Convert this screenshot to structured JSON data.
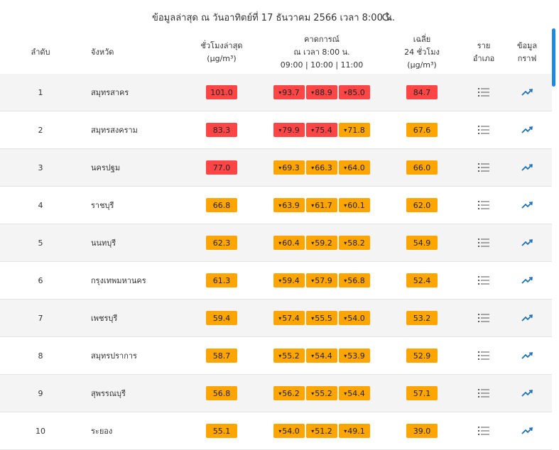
{
  "header": {
    "title": "ข้อมูลล่าสุด ณ วันอาทิตย์ที่ 17 ธันวาคม 2566 เวลา 8:00 น."
  },
  "table": {
    "columns": [
      [
        "ลำดับ"
      ],
      [
        "จังหวัด"
      ],
      [
        "ชั่วโมงล่าสุด",
        "(µg/m³)"
      ],
      [
        "คาดการณ์",
        "ณ เวลา 8:00 น.",
        "09:00 | 10:00 | 11:00"
      ],
      [
        "เฉลี่ย",
        "24 ชั่วโมง",
        "(µg/m³)"
      ],
      [
        "ราย",
        "อำเภอ"
      ],
      [
        "ข้อมูล",
        "กราฟ"
      ]
    ],
    "rows": [
      {
        "rank": "1",
        "province": "สมุทรสาคร",
        "latest": {
          "text": "101.0",
          "color": "#ff4545"
        },
        "forecast": [
          {
            "text": "93.7",
            "color": "#ff4545"
          },
          {
            "text": "88.9",
            "color": "#ff4545"
          },
          {
            "text": "85.0",
            "color": "#ff4545"
          }
        ],
        "average": {
          "text": "84.7",
          "color": "#ff4545"
        }
      },
      {
        "rank": "2",
        "province": "สมุทรสงคราม",
        "latest": {
          "text": "83.3",
          "color": "#ff4545"
        },
        "forecast": [
          {
            "text": "79.9",
            "color": "#ff4545"
          },
          {
            "text": "75.4",
            "color": "#ff4545"
          },
          {
            "text": "71.8",
            "color": "#ffa500"
          }
        ],
        "average": {
          "text": "67.6",
          "color": "#ffa500"
        }
      },
      {
        "rank": "3",
        "province": "นครปฐม",
        "latest": {
          "text": "77.0",
          "color": "#ff4545"
        },
        "forecast": [
          {
            "text": "69.3",
            "color": "#ffa500"
          },
          {
            "text": "66.3",
            "color": "#ffa500"
          },
          {
            "text": "64.0",
            "color": "#ffa500"
          }
        ],
        "average": {
          "text": "66.0",
          "color": "#ffa500"
        }
      },
      {
        "rank": "4",
        "province": "ราชบุรี",
        "latest": {
          "text": "66.8",
          "color": "#ffa500"
        },
        "forecast": [
          {
            "text": "63.9",
            "color": "#ffa500"
          },
          {
            "text": "61.7",
            "color": "#ffa500"
          },
          {
            "text": "60.1",
            "color": "#ffa500"
          }
        ],
        "average": {
          "text": "62.0",
          "color": "#ffa500"
        }
      },
      {
        "rank": "5",
        "province": "นนทบุรี",
        "latest": {
          "text": "62.3",
          "color": "#ffa500"
        },
        "forecast": [
          {
            "text": "60.4",
            "color": "#ffa500"
          },
          {
            "text": "59.2",
            "color": "#ffa500"
          },
          {
            "text": "58.2",
            "color": "#ffa500"
          }
        ],
        "average": {
          "text": "54.9",
          "color": "#ffa500"
        }
      },
      {
        "rank": "6",
        "province": "กรุงเทพมหานคร",
        "latest": {
          "text": "61.3",
          "color": "#ffa500"
        },
        "forecast": [
          {
            "text": "59.4",
            "color": "#ffa500"
          },
          {
            "text": "57.9",
            "color": "#ffa500"
          },
          {
            "text": "56.8",
            "color": "#ffa500"
          }
        ],
        "average": {
          "text": "52.4",
          "color": "#ffa500"
        }
      },
      {
        "rank": "7",
        "province": "เพชรบุรี",
        "latest": {
          "text": "59.4",
          "color": "#ffa500"
        },
        "forecast": [
          {
            "text": "57.4",
            "color": "#ffa500"
          },
          {
            "text": "55.5",
            "color": "#ffa500"
          },
          {
            "text": "54.0",
            "color": "#ffa500"
          }
        ],
        "average": {
          "text": "53.2",
          "color": "#ffa500"
        }
      },
      {
        "rank": "8",
        "province": "สมุทรปราการ",
        "latest": {
          "text": "58.7",
          "color": "#ffa500"
        },
        "forecast": [
          {
            "text": "55.2",
            "color": "#ffa500"
          },
          {
            "text": "54.4",
            "color": "#ffa500"
          },
          {
            "text": "53.9",
            "color": "#ffa500"
          }
        ],
        "average": {
          "text": "52.9",
          "color": "#ffa500"
        }
      },
      {
        "rank": "9",
        "province": "สุพรรณบุรี",
        "latest": {
          "text": "56.8",
          "color": "#ffa500"
        },
        "forecast": [
          {
            "text": "56.2",
            "color": "#ffa500"
          },
          {
            "text": "55.2",
            "color": "#ffa500"
          },
          {
            "text": "54.4",
            "color": "#ffa500"
          }
        ],
        "average": {
          "text": "57.1",
          "color": "#ffa500"
        }
      },
      {
        "rank": "10",
        "province": "ระยอง",
        "latest": {
          "text": "55.1",
          "color": "#ffa500"
        },
        "forecast": [
          {
            "text": "54.0",
            "color": "#ffa500"
          },
          {
            "text": "51.2",
            "color": "#ffa500"
          },
          {
            "text": "49.1",
            "color": "#ffa500"
          }
        ],
        "average": {
          "text": "39.0",
          "color": "#ffa500"
        }
      }
    ]
  }
}
